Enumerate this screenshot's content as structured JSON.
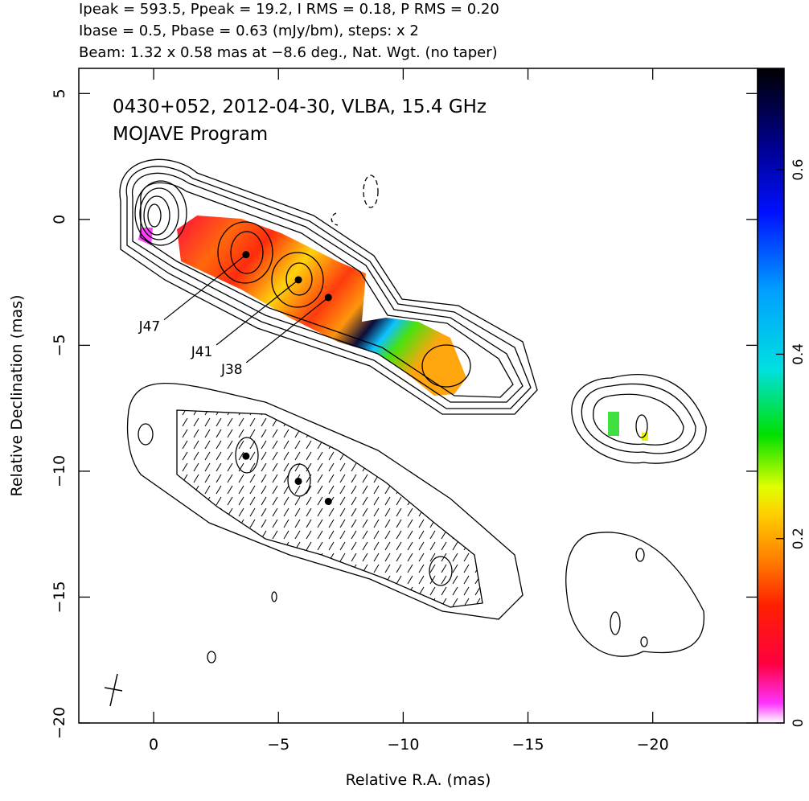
{
  "chart_data": {
    "type": "contour",
    "header": [
      "Ipeak = 593.5, Ppeak = 19.2, I RMS = 0.18, P RMS = 0.20",
      "Ibase = 0.5, Pbase = 0.63 (mJy/bm), steps: x 2",
      "Beam: 1.32 x 0.58 mas at −8.6 deg., Nat. Wgt. (no taper)"
    ],
    "annotation": [
      "0430+052, 2012-04-30, VLBA, 15.4 GHz",
      "MOJAVE Program"
    ],
    "x_label": "Relative R.A. (mas)",
    "y_label": "Relative Declination (mas)",
    "xlim": [
      3,
      -24.2
    ],
    "ylim": [
      -20,
      6
    ],
    "xticks": [
      0,
      {
        "value": -5,
        "label": "−5"
      },
      {
        "value": -10,
        "label": "−10"
      },
      {
        "value": -15,
        "label": "−15"
      },
      {
        "value": -20,
        "label": "−20"
      }
    ],
    "yticks": [
      5,
      0,
      {
        "value": -5,
        "label": "−5"
      },
      {
        "value": -10,
        "label": "−10"
      },
      {
        "value": -15,
        "label": "−15"
      },
      {
        "value": -20,
        "label": "−20"
      }
    ],
    "components": {
      "names": [
        "J47",
        "J41",
        "J38"
      ],
      "x": [
        -3.7,
        -5.8,
        -7.0
      ],
      "y": [
        -1.4,
        -2.4,
        -3.1
      ]
    },
    "pol_components": {
      "x": [
        -3.7,
        -5.8,
        -7.0
      ],
      "y": [
        -9.4,
        -10.4,
        -11.2
      ]
    },
    "colorbar_lim": [
      0,
      0.71
    ],
    "colorbar_ticks": [
      0,
      0.2,
      0.4,
      0.6
    ]
  }
}
